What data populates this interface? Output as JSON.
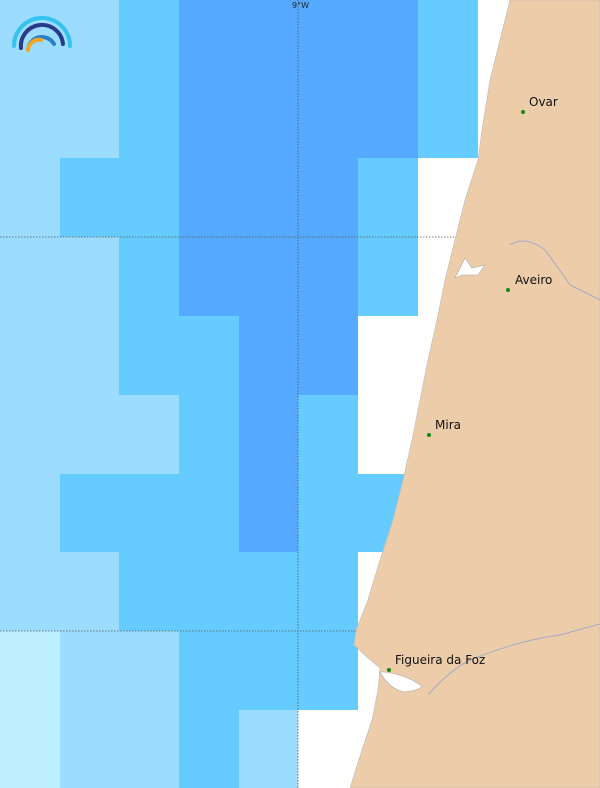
{
  "colors": {
    "L": "#9bdcff",
    "M": "#66ccff",
    "D": "#55aaff",
    "V": "#bbeeff",
    "W": "#ffffff",
    "land": "#edcca9",
    "city": "#118811"
  },
  "grid": [
    "LLMDDDDMW",
    "LLMDDDDMW",
    "LMMDDDMWW",
    "LLMDDDMWW",
    "LLMMDDWWW",
    "LLLMDMWWW",
    "LMMMDMMWW",
    "LLMMMMWWW",
    "VLLMMMWWW",
    "VLLMLWWWW"
  ],
  "axis": {
    "lon_label": "9°W"
  },
  "cities": [
    {
      "name": "Ovar",
      "dot": [
        523,
        112
      ],
      "label": [
        529,
        95
      ]
    },
    {
      "name": "Aveiro",
      "dot": [
        508,
        290
      ],
      "label": [
        515,
        273
      ]
    },
    {
      "name": "Mira",
      "dot": [
        429,
        435
      ],
      "label": [
        435,
        418
      ]
    },
    {
      "name": "Figueira da Foz",
      "dot": [
        389,
        670
      ],
      "label": [
        395,
        653
      ]
    }
  ],
  "logo": "weather-arc-logo"
}
